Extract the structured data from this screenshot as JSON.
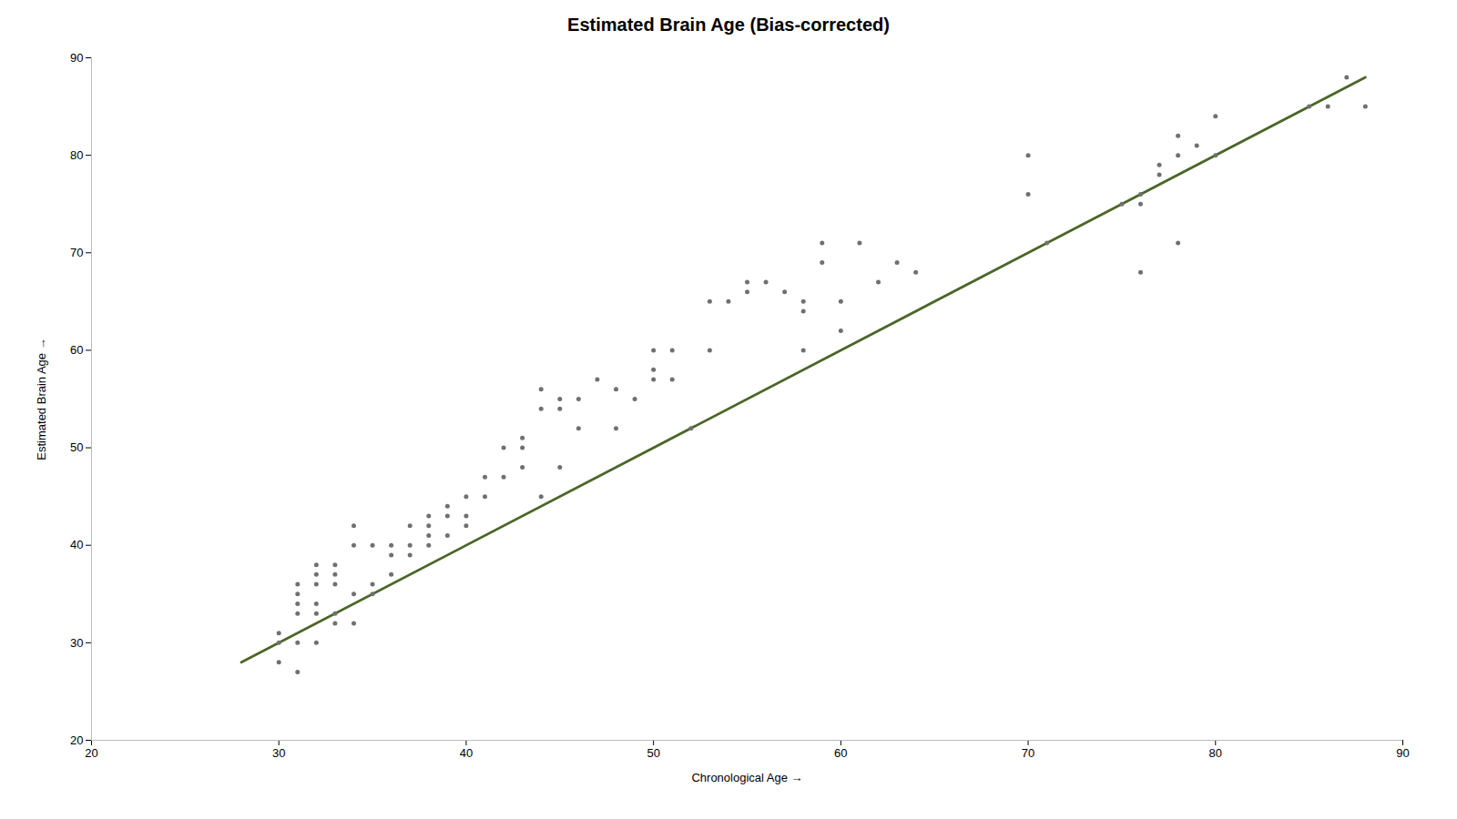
{
  "chart_data": {
    "type": "scatter",
    "title": "Estimated Brain Age (Bias-corrected)",
    "xlabel": "Chronological Age",
    "ylabel": "Estimated Brain Age",
    "xlim": [
      20,
      90
    ],
    "ylim": [
      20,
      90
    ],
    "xticks": [
      20,
      30,
      40,
      50,
      60,
      70,
      80,
      90
    ],
    "yticks": [
      20,
      30,
      40,
      50,
      60,
      70,
      80,
      90
    ],
    "grid": false,
    "series": [
      {
        "type": "line",
        "color": "#4a6628",
        "x": [
          28,
          88
        ],
        "values": [
          28,
          88
        ]
      },
      {
        "type": "scatter",
        "color": "#707070",
        "x": [
          30,
          30,
          30,
          31,
          31,
          31,
          31,
          31,
          31,
          32,
          32,
          32,
          32,
          32,
          32,
          33,
          33,
          33,
          33,
          33,
          34,
          34,
          34,
          34,
          35,
          35,
          35,
          36,
          36,
          36,
          37,
          37,
          37,
          38,
          38,
          38,
          38,
          39,
          39,
          39,
          40,
          40,
          40,
          41,
          41,
          42,
          42,
          43,
          43,
          43,
          44,
          44,
          44,
          45,
          45,
          45,
          46,
          46,
          47,
          48,
          48,
          49,
          50,
          50,
          50,
          51,
          51,
          52,
          53,
          53,
          54,
          55,
          55,
          56,
          57,
          58,
          58,
          58,
          59,
          59,
          60,
          60,
          61,
          62,
          63,
          64,
          70,
          70,
          71,
          75,
          76,
          76,
          76,
          77,
          77,
          78,
          78,
          78,
          79,
          80,
          80,
          85,
          86,
          87,
          88
        ],
        "values": [
          31,
          30,
          28,
          36,
          35,
          34,
          33,
          30,
          27,
          38,
          37,
          36,
          34,
          33,
          30,
          38,
          37,
          36,
          33,
          32,
          42,
          40,
          35,
          32,
          40,
          36,
          35,
          40,
          39,
          37,
          42,
          40,
          39,
          43,
          42,
          41,
          40,
          44,
          43,
          41,
          45,
          43,
          42,
          47,
          45,
          50,
          47,
          51,
          50,
          48,
          56,
          54,
          45,
          55,
          54,
          48,
          55,
          52,
          57,
          56,
          52,
          55,
          60,
          58,
          57,
          60,
          57,
          52,
          65,
          60,
          65,
          67,
          66,
          67,
          66,
          65,
          64,
          60,
          71,
          69,
          65,
          62,
          71,
          67,
          69,
          68,
          80,
          76,
          71,
          75,
          76,
          75,
          68,
          79,
          78,
          82,
          80,
          71,
          81,
          84,
          80,
          85,
          85,
          88,
          85
        ]
      }
    ]
  }
}
